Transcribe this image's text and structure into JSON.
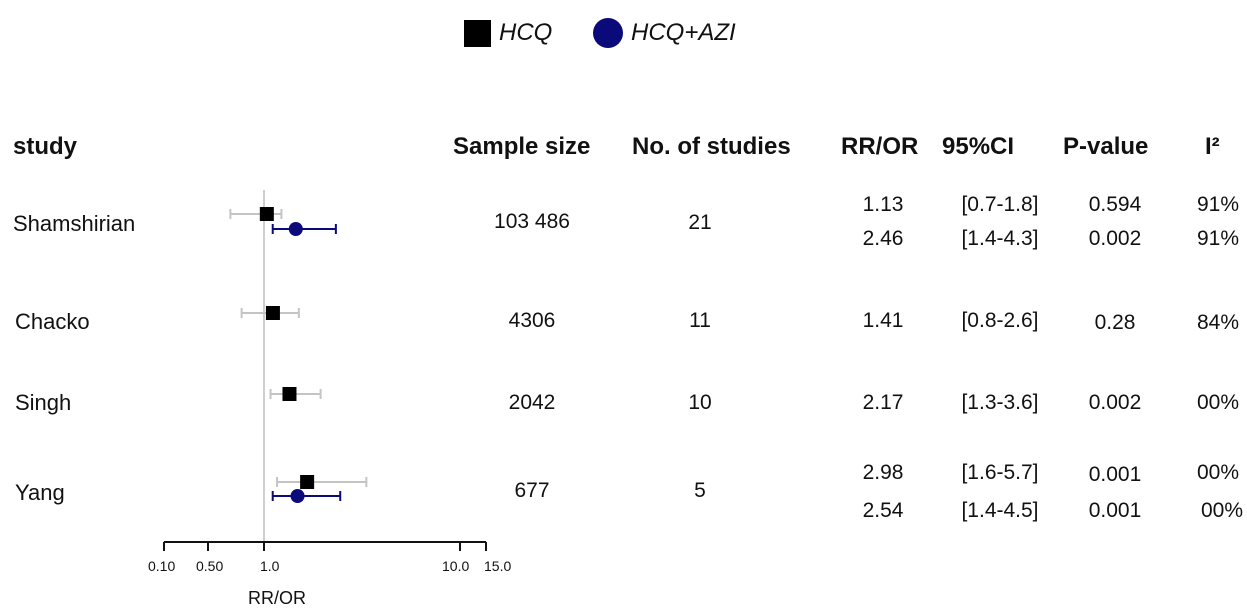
{
  "legend": [
    {
      "label": "HCQ",
      "color": "#000000",
      "marker": "square"
    },
    {
      "label": "HCQ+AZI",
      "color": "#0a0a7a",
      "marker": "circle"
    }
  ],
  "headers": {
    "study": "study",
    "sample_size": "Sample size",
    "n_studies": "No. of studies",
    "rr": "RR/OR",
    "ci": "95%CI",
    "p": "P-value",
    "i2": "I²"
  },
  "chart_data": {
    "type": "forest",
    "x_axis": {
      "label": "RR/OR",
      "ticks": [
        0.1,
        0.5,
        1.0,
        10.0,
        15.0
      ],
      "tick_labels": [
        "0.10",
        "0.50",
        "1.0",
        "10.0",
        "15.0"
      ],
      "reference_line": 1.0
    },
    "series": [
      {
        "name": "HCQ",
        "color": "#000000",
        "marker": "square"
      },
      {
        "name": "HCQ+AZI",
        "color": "#0a0a7a",
        "marker": "circle"
      }
    ],
    "studies": [
      {
        "name": "Shamshirian",
        "sample_size": "103 486",
        "n_studies": "21",
        "estimates": [
          {
            "series": "HCQ",
            "rr": 1.13,
            "rr_text": "1.13",
            "ci_low": 0.7,
            "ci_high": 1.8,
            "ci_text": "[0.7-1.8]",
            "p": "0.594",
            "i2": "91%"
          },
          {
            "series": "HCQ+AZI",
            "rr": 2.46,
            "rr_text": "2.46",
            "ci_low": 1.4,
            "ci_high": 4.3,
            "ci_text": "[1.4-4.3]",
            "p": "0.002",
            "i2": "91%"
          }
        ]
      },
      {
        "name": "Chacko",
        "sample_size": "4306",
        "n_studies": "11",
        "estimates": [
          {
            "series": "HCQ",
            "rr": 1.41,
            "rr_text": "1.41",
            "ci_low": 0.8,
            "ci_high": 2.6,
            "ci_text": "[0.8-2.6]",
            "p": "0.28",
            "i2": "84%"
          }
        ]
      },
      {
        "name": "Singh",
        "sample_size": "2042",
        "n_studies": "10",
        "estimates": [
          {
            "series": "HCQ",
            "rr": 2.17,
            "rr_text": "2.17",
            "ci_low": 1.3,
            "ci_high": 3.6,
            "ci_text": "[1.3-3.6]",
            "p": "0.002",
            "i2": "00%"
          }
        ]
      },
      {
        "name": "Yang",
        "sample_size": "677",
        "n_studies": "5",
        "estimates": [
          {
            "series": "HCQ",
            "rr": 2.98,
            "rr_text": "2.98",
            "ci_low": 1.6,
            "ci_high": 5.7,
            "ci_text": "[1.6-5.7]",
            "p": "0.001",
            "i2": "00%"
          },
          {
            "series": "HCQ+AZI",
            "rr": 2.54,
            "rr_text": "2.54",
            "ci_low": 1.4,
            "ci_high": 4.5,
            "ci_text": "[1.4-4.5]",
            "p": "0.001",
            "i2": "00%"
          }
        ]
      }
    ]
  }
}
